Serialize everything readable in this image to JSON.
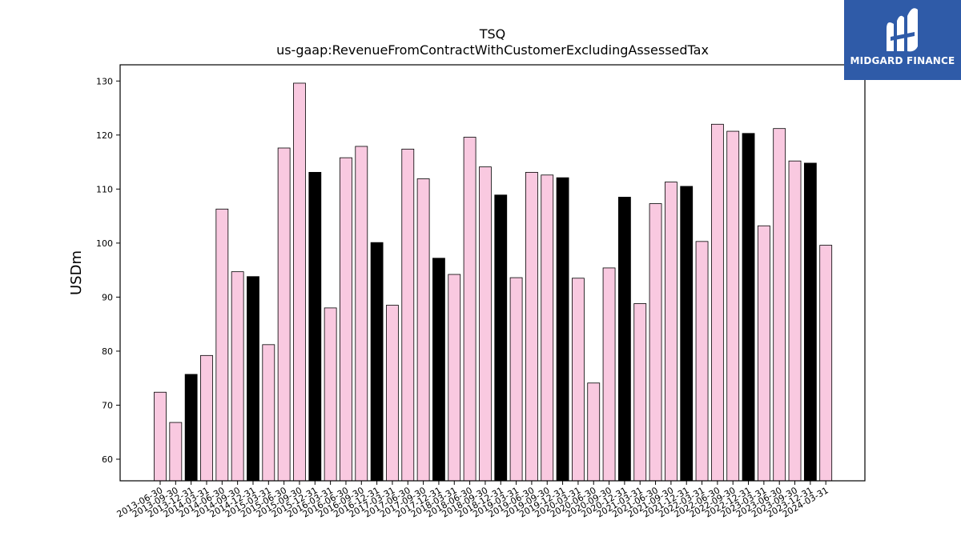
{
  "chart_data": {
    "type": "bar",
    "title": "TSQ",
    "subtitle": "us-gaap:RevenueFromContractWithCustomerExcludingAssessedTax",
    "xlabel": "",
    "ylabel": "USDm",
    "ylim": [
      56,
      133
    ],
    "yticks": [
      60,
      70,
      80,
      90,
      100,
      110,
      120,
      130
    ],
    "grid": false,
    "colors": {
      "normal": "#f9c9e0",
      "highlight": "#000000",
      "edge": "#000000"
    },
    "categories": [
      "2013-06-30",
      "2013-09-30",
      "2013-12-31",
      "2014-03-31",
      "2014-06-30",
      "2014-09-30",
      "2014-12-31",
      "2015-03-31",
      "2015-06-30",
      "2015-09-30",
      "2015-12-31",
      "2016-03-31",
      "2016-06-30",
      "2016-09-30",
      "2016-12-31",
      "2017-03-31",
      "2017-06-30",
      "2017-09-30",
      "2017-12-31",
      "2018-03-31",
      "2018-06-30",
      "2018-09-30",
      "2018-12-31",
      "2019-03-31",
      "2019-06-30",
      "2019-09-30",
      "2019-12-31",
      "2020-03-31",
      "2020-06-30",
      "2020-09-30",
      "2020-12-31",
      "2021-03-31",
      "2021-06-30",
      "2021-09-30",
      "2021-12-31",
      "2022-03-31",
      "2022-06-30",
      "2022-09-30",
      "2022-12-31",
      "2023-03-31",
      "2023-06-30",
      "2023-09-30",
      "2023-12-31",
      "2024-03-31"
    ],
    "values": [
      72.4,
      66.8,
      75.7,
      79.2,
      106.3,
      94.7,
      93.8,
      81.2,
      117.6,
      129.6,
      113.1,
      88.0,
      115.8,
      117.9,
      100.1,
      88.5,
      117.4,
      111.9,
      97.2,
      94.2,
      119.6,
      114.1,
      108.9,
      93.6,
      113.1,
      112.6,
      112.1,
      93.5,
      74.1,
      95.4,
      108.5,
      88.8,
      107.3,
      111.3,
      110.5,
      100.3,
      122.0,
      120.7,
      120.3,
      103.2,
      121.2,
      115.2,
      114.8,
      99.6
    ],
    "highlighted": [
      2,
      6,
      10,
      14,
      18,
      22,
      26,
      30,
      34,
      38,
      42
    ]
  },
  "logo": {
    "text": "MIDGARD FINANCE",
    "icon": "midgard-logo-icon",
    "background": "#2f5ba8"
  }
}
